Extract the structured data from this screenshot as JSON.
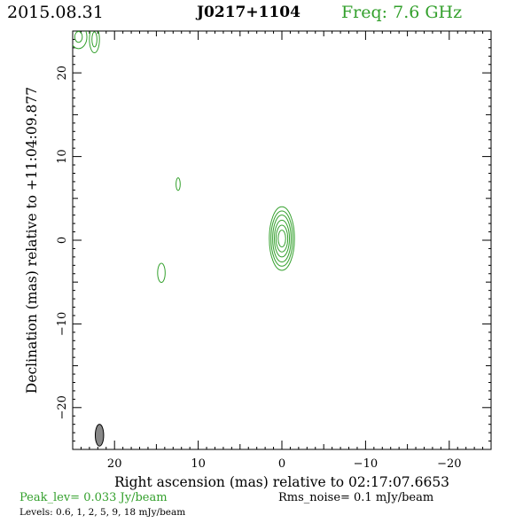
{
  "header": {
    "date": "2015.08.31",
    "source": "J0217+1104",
    "freq": "Freq: 7.6 GHz"
  },
  "footer": {
    "peak": "Peak_lev=  0.033 Jy/beam",
    "rms": "Rms_noise=   0.1 mJy/beam",
    "levels": "Levels: 0.6,   1,   2,   5,   9,   18 mJy/beam"
  },
  "colors": {
    "contour": "#33a02c",
    "beam": "#888888",
    "accent_text": "#33a02c"
  },
  "chart_data": {
    "type": "contour",
    "title": "J0217+1104",
    "xlabel": "Right ascension (mas) relative to 02:17:07.6653",
    "ylabel": "Declination (mas) relative to +11:04:09.877",
    "xlim": [
      25,
      -25
    ],
    "ylim": [
      -25,
      25
    ],
    "xticks": [
      20,
      10,
      0,
      -10,
      -20
    ],
    "yticks": [
      20,
      10,
      0,
      -10,
      -20
    ],
    "xtick_labels": [
      "20",
      "10",
      "0",
      "−10",
      "−20"
    ],
    "ytick_labels": [
      "20",
      "10",
      "0",
      "−10",
      "−20"
    ],
    "levels_mJy": [
      0.6,
      1,
      2,
      5,
      9,
      18
    ],
    "peak_Jy_per_beam": 0.033,
    "rms_mJy_per_beam": 0.1,
    "components": [
      {
        "x": 0.0,
        "y": 0.2,
        "contours": [
          {
            "level": 0.6,
            "rx": 1.5,
            "ry": 3.8
          },
          {
            "level": 1,
            "rx": 1.3,
            "ry": 3.3
          },
          {
            "level": 2,
            "rx": 1.1,
            "ry": 2.8
          },
          {
            "level": 5,
            "rx": 0.9,
            "ry": 2.2
          },
          {
            "level": 9,
            "rx": 0.7,
            "ry": 1.6
          },
          {
            "level": 18,
            "rx": 0.45,
            "ry": 1.0
          }
        ]
      },
      {
        "x": 12.4,
        "y": 6.7,
        "contours": [
          {
            "level": 0.6,
            "rx": 0.25,
            "ry": 0.75
          }
        ]
      },
      {
        "x": 14.4,
        "y": -3.9,
        "contours": [
          {
            "level": 0.6,
            "rx": 0.45,
            "ry": 1.15
          }
        ]
      },
      {
        "x": 22.4,
        "y": 24.0,
        "contours": [
          {
            "level": 0.6,
            "rx": 0.6,
            "ry": 1.6
          },
          {
            "level": 1,
            "rx": 0.3,
            "ry": 0.9
          }
        ]
      },
      {
        "x": 24.3,
        "y": 24.3,
        "contours": [
          {
            "level": 0.6,
            "rx": 1.0,
            "ry": 1.4
          },
          {
            "level": 1,
            "rx": 0.45,
            "ry": 0.65
          }
        ]
      }
    ],
    "beam": {
      "x": 21.8,
      "y": -23.3,
      "major_mas": 2.6,
      "minor_mas": 1.0,
      "pa_deg": 0
    }
  }
}
